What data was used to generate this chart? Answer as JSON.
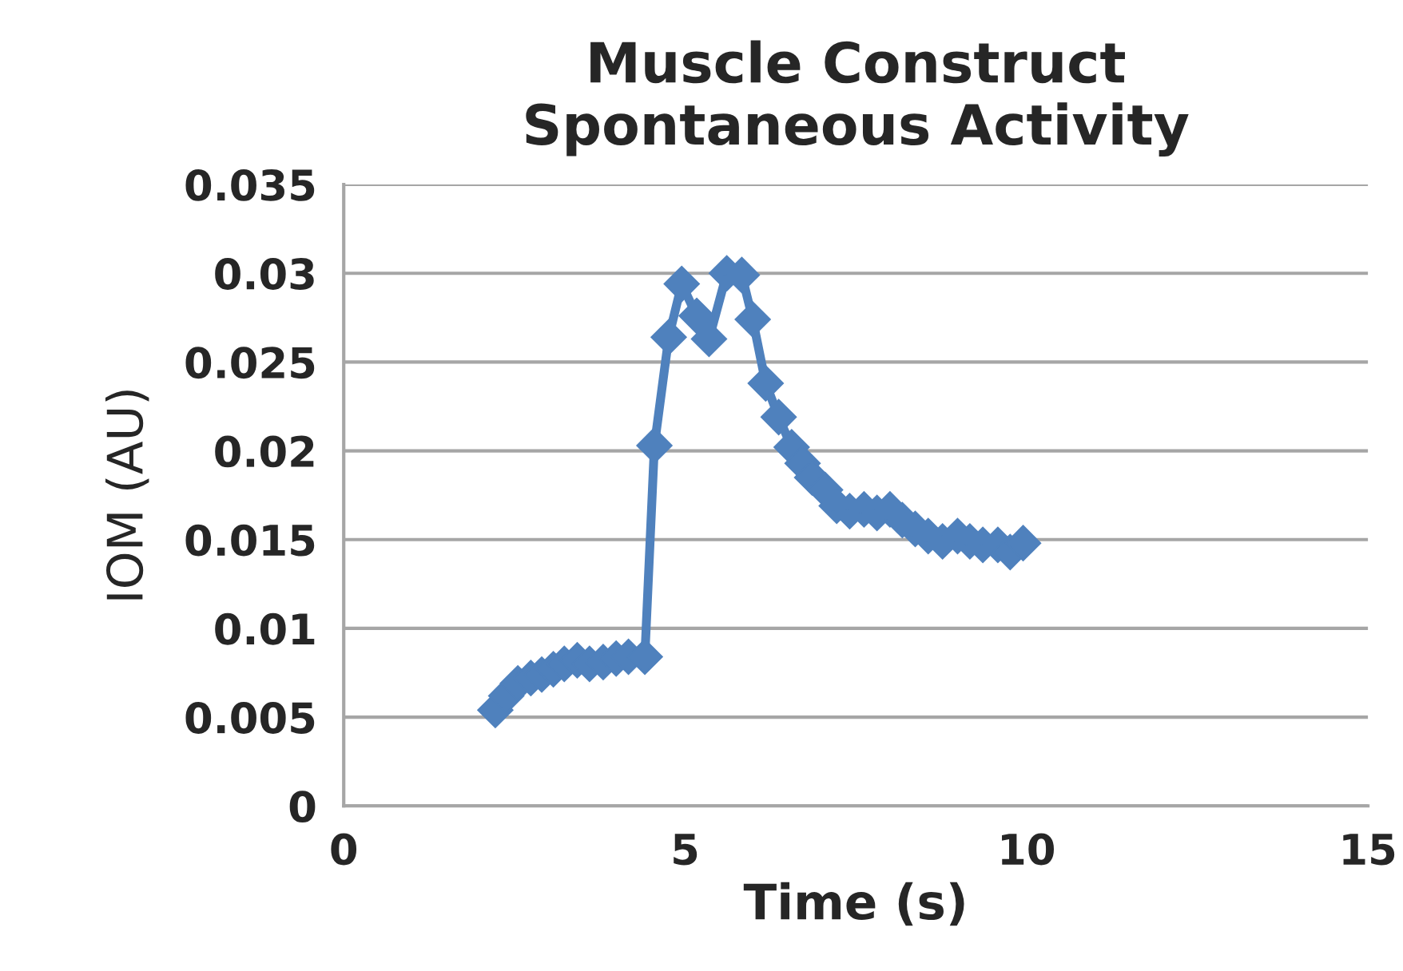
{
  "chart_data": {
    "type": "line",
    "title": "Muscle Construct\nSpontaneous Activity",
    "xlabel": "Time (s)",
    "ylabel": "IOM (AU)",
    "xlim": [
      0,
      15
    ],
    "xticks": [
      0,
      5,
      10,
      15
    ],
    "ylim": [
      0,
      0.035
    ],
    "yticks": [
      0,
      0.005,
      0.01,
      0.015,
      0.02,
      0.025,
      0.03,
      0.035
    ],
    "grid": "y",
    "marker": "diamond",
    "line_style": "solid",
    "series": [
      {
        "color": "#4f81bd",
        "x": [
          2.22,
          2.38,
          2.55,
          2.74,
          2.9,
          3.07,
          3.23,
          3.42,
          3.6,
          3.8,
          3.99,
          4.17,
          4.41,
          4.55,
          4.76,
          4.95,
          5.17,
          5.35,
          5.61,
          5.83,
          5.99,
          6.18,
          6.37,
          6.56,
          6.72,
          6.86,
          7.05,
          7.22,
          7.41,
          7.62,
          7.81,
          8.0,
          8.18,
          8.37,
          8.56,
          8.77,
          8.99,
          9.17,
          9.36,
          9.58,
          9.76,
          9.95
        ],
        "values": [
          0.0054,
          0.0062,
          0.0069,
          0.0072,
          0.0074,
          0.0077,
          0.008,
          0.0082,
          0.008,
          0.0081,
          0.0083,
          0.0084,
          0.0084,
          0.0203,
          0.0264,
          0.0294,
          0.0276,
          0.0263,
          0.03,
          0.0299,
          0.0274,
          0.0238,
          0.0219,
          0.0202,
          0.0193,
          0.0185,
          0.0178,
          0.0169,
          0.0166,
          0.0167,
          0.0165,
          0.0167,
          0.0161,
          0.0156,
          0.0152,
          0.0149,
          0.0152,
          0.0149,
          0.0147,
          0.0147,
          0.0143,
          0.0148
        ]
      }
    ]
  }
}
